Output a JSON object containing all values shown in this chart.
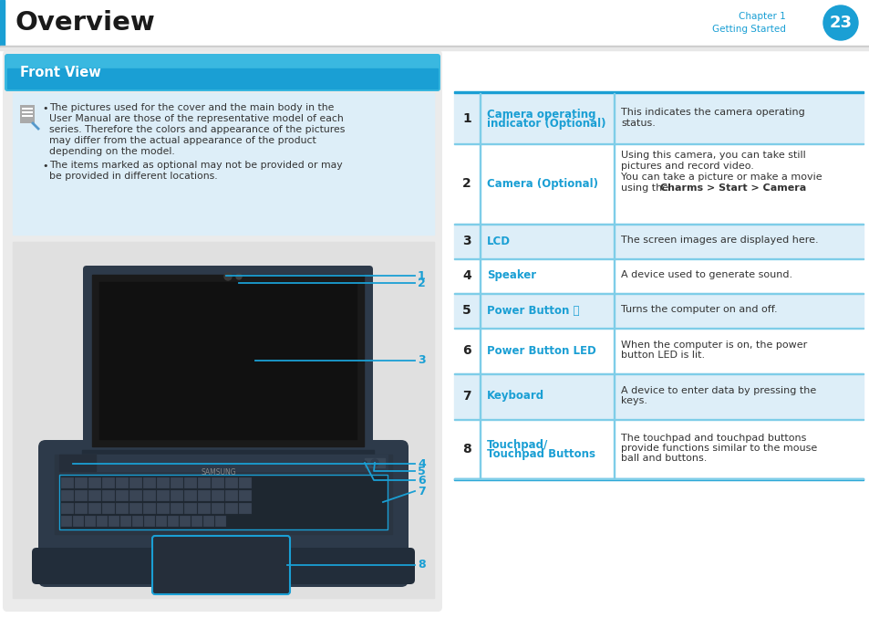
{
  "bg_color": "#f5f5f5",
  "page_width": 9.54,
  "page_height": 6.77,
  "title": "Overview",
  "title_color": "#1a1a1a",
  "chapter_text": "Chapter 1",
  "getting_started_text": "Getting Started",
  "page_num": "23",
  "page_badge_color": "#1a9fd4",
  "left_bar_color": "#1a9fd4",
  "section_title": "Front View",
  "section_title_bg_top": "#4dc3e8",
  "section_title_bg_bot": "#1a9fd4",
  "section_title_color": "#ffffff",
  "section_panel_bg": "#ddeef8",
  "note_text_1a": "The pictures used for the cover and the main body in the",
  "note_text_1b": "User Manual are those of the representative model of each",
  "note_text_1c": "series. Therefore the colors and appearance of the pictures",
  "note_text_1d": "may differ from the actual appearance of the product",
  "note_text_1e": "depending on the model.",
  "note_text_2a": "The items marked as optional may not be provided or may",
  "note_text_2b": "be provided in different locations.",
  "callout_color": "#1a9fd4",
  "table_top_border": "#1a9fd4",
  "table_row_bg_odd": "#ddeef8",
  "table_row_bg_even": "#ffffff",
  "table_divider_color": "#7ecde8",
  "table_num_color": "#222222",
  "table_label_color": "#1a9fd4",
  "table_desc_color": "#333333",
  "rows": [
    {
      "num": "1",
      "label": "Camera operating\nindicator (Optional)",
      "desc": "This indicates the camera operating\nstatus.",
      "rh": 55
    },
    {
      "num": "2",
      "label": "Camera (Optional)",
      "desc": "Using this camera, you can take still\npictures and record video.\nYou can take a picture or make a movie\nusing the [b]Charms > Start > Camera[/b].",
      "rh": 88
    },
    {
      "num": "3",
      "label": "LCD",
      "desc": "The screen images are displayed here.",
      "rh": 38
    },
    {
      "num": "4",
      "label": "Speaker",
      "desc": "A device used to generate sound.",
      "rh": 38
    },
    {
      "num": "5",
      "label": "Power Button ⏻",
      "desc": "Turns the computer on and off.",
      "rh": 38
    },
    {
      "num": "6",
      "label": "Power Button LED",
      "desc": "When the computer is on, the power\nbutton LED is lit.",
      "rh": 50
    },
    {
      "num": "7",
      "label": "Keyboard",
      "desc": "A device to enter data by pressing the\nkeys.",
      "rh": 50
    },
    {
      "num": "8",
      "label": "Touchpad/\nTouchpad Buttons",
      "desc": "The touchpad and touchpad buttons\nprovide functions similar to the mouse\nball and buttons.",
      "rh": 65
    }
  ]
}
